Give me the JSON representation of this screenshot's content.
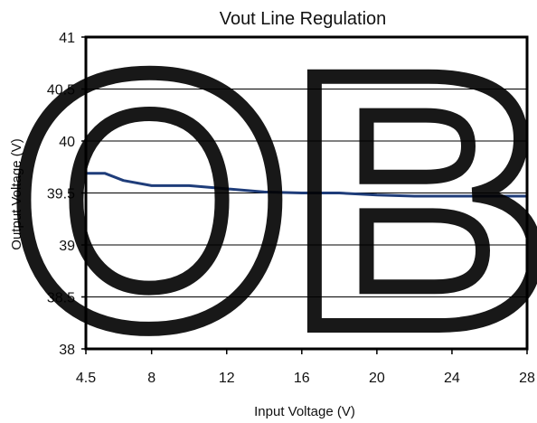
{
  "watermark": {
    "text": "OBS",
    "color": "#000000"
  },
  "chart_data": {
    "type": "line",
    "title": "Vout Line Regulation",
    "xlabel": "Input Voltage (V)",
    "ylabel": "Output Voltage (V)",
    "xlim": [
      4.5,
      28
    ],
    "ylim": [
      38,
      41
    ],
    "x_ticks": [
      4.5,
      8,
      12,
      16,
      20,
      24,
      28
    ],
    "x_tick_labels": [
      "4.5",
      "8",
      "12",
      "16",
      "20",
      "24",
      "28"
    ],
    "y_ticks": [
      38,
      38.5,
      39,
      39.5,
      40,
      40.5,
      41
    ],
    "y_tick_labels": [
      "38",
      "38.5",
      "39",
      "39.5",
      "40",
      "40.5",
      "41"
    ],
    "grid": {
      "horizontal": true,
      "vertical": false
    },
    "line_color": "#1f3d7a",
    "series": [
      {
        "x": [
          4.5,
          5.5,
          6.5,
          8,
          10,
          12,
          14,
          16,
          18,
          20,
          22,
          24,
          26,
          28
        ],
        "y": [
          39.69,
          39.69,
          39.62,
          39.57,
          39.57,
          39.54,
          39.51,
          39.5,
          39.5,
          39.48,
          39.47,
          39.47,
          39.47,
          39.47
        ]
      }
    ]
  }
}
